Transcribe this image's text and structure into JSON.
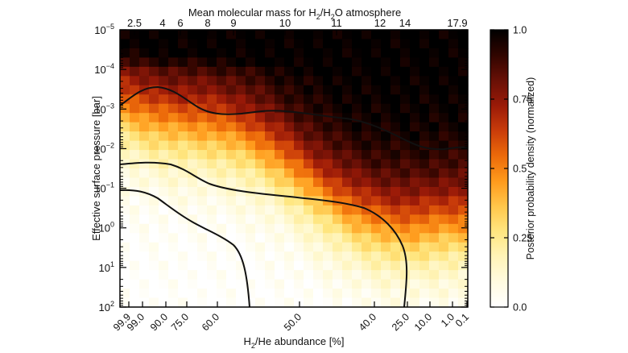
{
  "chart_data": {
    "type": "heatmap",
    "title": "",
    "top_axis": {
      "label": "Mean molecular mass for H₂/H₂O atmosphere",
      "label_main": "Mean molecular mass for H",
      "label_sub1": "2",
      "label_mid": "/H",
      "label_sub2": "2",
      "label_end": "O atmosphere",
      "ticks": [
        "2.5",
        "4",
        "6",
        "8",
        "9",
        "10",
        "11",
        "12",
        "14",
        "17.9"
      ]
    },
    "x_axis": {
      "label": "H₂/He abundance [%]",
      "label_main": "H",
      "label_sub": "2",
      "label_end": "/He abundance [%]",
      "ticks": [
        "99.9",
        "99.0",
        "90.0",
        "75.0",
        "60.0",
        "50.0",
        "40.0",
        "25.0",
        "10.0",
        "1.0",
        "0.1"
      ],
      "tick_rotation": "diagonal"
    },
    "y_axis": {
      "label": "Effective surface pressure [bar]",
      "scale": "log",
      "inverted": true,
      "range": [
        1e-05,
        100
      ],
      "ticks": [
        {
          "base": "10",
          "exp": "−5",
          "value": 1e-05
        },
        {
          "base": "10",
          "exp": "−4",
          "value": 0.0001
        },
        {
          "base": "10",
          "exp": "−3",
          "value": 0.001
        },
        {
          "base": "10",
          "exp": "−2",
          "value": 0.01
        },
        {
          "base": "10",
          "exp": "−1",
          "value": 0.1
        },
        {
          "base": "10",
          "exp": "0",
          "value": 1
        },
        {
          "base": "10",
          "exp": "1",
          "value": 10
        },
        {
          "base": "10",
          "exp": "2",
          "value": 100
        }
      ]
    },
    "colorbar": {
      "label": "Posterior probability density (normalized)",
      "range": [
        0,
        1
      ],
      "ticks": [
        "0.0",
        "0.25",
        "0.5",
        "0.75",
        "1.0"
      ],
      "colormap": [
        "#ffffff",
        "#fffbe0",
        "#fff4b8",
        "#ffe680",
        "#ffc64a",
        "#ff9a1c",
        "#ec6a0a",
        "#c93c0a",
        "#9a1a08",
        "#681006",
        "#300500",
        "#000000"
      ]
    },
    "grid": false,
    "contours": 3
  }
}
